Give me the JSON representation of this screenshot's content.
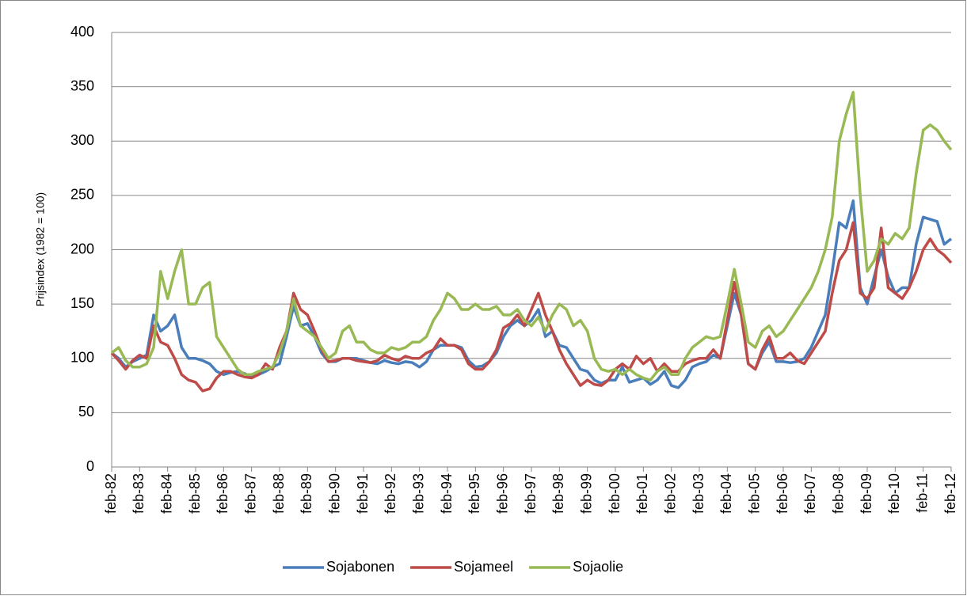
{
  "chart_data": {
    "type": "line",
    "y_label": "Prijsindex (1982 = 100)",
    "categories": [
      "feb-82",
      null,
      null,
      null,
      "feb-83",
      null,
      null,
      null,
      "feb-84",
      null,
      null,
      null,
      "feb-85",
      null,
      null,
      null,
      "feb-86",
      null,
      null,
      null,
      "feb-87",
      null,
      null,
      null,
      "feb-88",
      null,
      null,
      null,
      "feb-89",
      null,
      null,
      null,
      "feb-90",
      null,
      null,
      null,
      "feb-91",
      null,
      null,
      null,
      "feb-92",
      null,
      null,
      null,
      "feb-93",
      null,
      null,
      null,
      "feb-94",
      null,
      null,
      null,
      "feb-95",
      null,
      null,
      null,
      "feb-96",
      null,
      null,
      null,
      "feb-97",
      null,
      null,
      null,
      "feb-98",
      null,
      null,
      null,
      "feb-99",
      null,
      null,
      null,
      "feb-00",
      null,
      null,
      null,
      "feb-01",
      null,
      null,
      null,
      "feb-02",
      null,
      null,
      null,
      "feb-03",
      null,
      null,
      null,
      "feb-04",
      null,
      null,
      null,
      "feb-05",
      null,
      null,
      null,
      "feb-06",
      null,
      null,
      null,
      "feb-07",
      null,
      null,
      null,
      "feb-08",
      null,
      null,
      null,
      "feb-09",
      null,
      null,
      null,
      "feb-10",
      null,
      null,
      null,
      "feb-11",
      null,
      null,
      null,
      "feb-12"
    ],
    "series": [
      {
        "name": "Sojabonen",
        "color": "#4a7ebb",
        "values": [
          105,
          100,
          92,
          97,
          100,
          103,
          140,
          125,
          130,
          140,
          110,
          100,
          100,
          98,
          95,
          88,
          85,
          87,
          88,
          86,
          83,
          85,
          88,
          92,
          95,
          120,
          148,
          130,
          132,
          120,
          105,
          97,
          97,
          100,
          100,
          100,
          98,
          96,
          95,
          98,
          96,
          95,
          97,
          96,
          92,
          97,
          108,
          112,
          112,
          112,
          110,
          98,
          92,
          93,
          97,
          105,
          120,
          130,
          135,
          130,
          135,
          145,
          120,
          125,
          112,
          110,
          100,
          90,
          88,
          80,
          77,
          80,
          80,
          92,
          78,
          80,
          82,
          76,
          80,
          88,
          75,
          73,
          80,
          92,
          95,
          97,
          103,
          100,
          130,
          160,
          140,
          95,
          90,
          105,
          115,
          97,
          97,
          96,
          97,
          100,
          110,
          125,
          140,
          180,
          225,
          220,
          245,
          165,
          150,
          175,
          200,
          175,
          160,
          165,
          165,
          205,
          230,
          228,
          226,
          205,
          210
        ]
      },
      {
        "name": "Sojameel",
        "color": "#be4b48",
        "values": [
          105,
          98,
          90,
          98,
          103,
          100,
          130,
          115,
          112,
          100,
          85,
          80,
          78,
          70,
          72,
          82,
          88,
          88,
          85,
          83,
          82,
          85,
          95,
          90,
          110,
          125,
          160,
          145,
          140,
          125,
          108,
          97,
          98,
          100,
          100,
          98,
          97,
          96,
          98,
          103,
          100,
          98,
          102,
          100,
          100,
          105,
          108,
          118,
          112,
          112,
          108,
          95,
          90,
          90,
          97,
          108,
          128,
          132,
          140,
          130,
          145,
          160,
          140,
          125,
          108,
          95,
          85,
          75,
          80,
          76,
          75,
          80,
          90,
          95,
          90,
          102,
          95,
          100,
          88,
          95,
          88,
          88,
          95,
          98,
          100,
          100,
          108,
          100,
          135,
          170,
          140,
          95,
          90,
          108,
          120,
          100,
          100,
          105,
          98,
          95,
          105,
          115,
          125,
          160,
          190,
          200,
          225,
          160,
          155,
          165,
          220,
          165,
          160,
          155,
          165,
          180,
          200,
          210,
          200,
          195,
          188
        ]
      },
      {
        "name": "Sojaolie",
        "color": "#98b954",
        "values": [
          105,
          110,
          98,
          92,
          92,
          95,
          110,
          180,
          155,
          180,
          200,
          150,
          150,
          165,
          170,
          120,
          110,
          100,
          90,
          85,
          85,
          88,
          90,
          92,
          105,
          125,
          155,
          130,
          125,
          120,
          110,
          100,
          105,
          125,
          130,
          115,
          115,
          108,
          105,
          105,
          110,
          108,
          110,
          115,
          115,
          120,
          135,
          145,
          160,
          155,
          145,
          145,
          150,
          145,
          145,
          148,
          140,
          140,
          145,
          135,
          130,
          138,
          125,
          140,
          150,
          145,
          130,
          135,
          125,
          100,
          90,
          88,
          90,
          85,
          90,
          85,
          82,
          80,
          88,
          92,
          85,
          85,
          100,
          110,
          115,
          120,
          118,
          120,
          150,
          182,
          150,
          115,
          110,
          125,
          130,
          120,
          125,
          135,
          145,
          155,
          165,
          180,
          200,
          230,
          300,
          325,
          345,
          250,
          180,
          190,
          210,
          205,
          215,
          210,
          220,
          270,
          310,
          315,
          310,
          300,
          292
        ]
      }
    ],
    "ylim": [
      0,
      400
    ],
    "yticks": [
      0,
      50,
      100,
      150,
      200,
      250,
      300,
      350,
      400
    ],
    "grid": true,
    "legend": "bottom"
  }
}
